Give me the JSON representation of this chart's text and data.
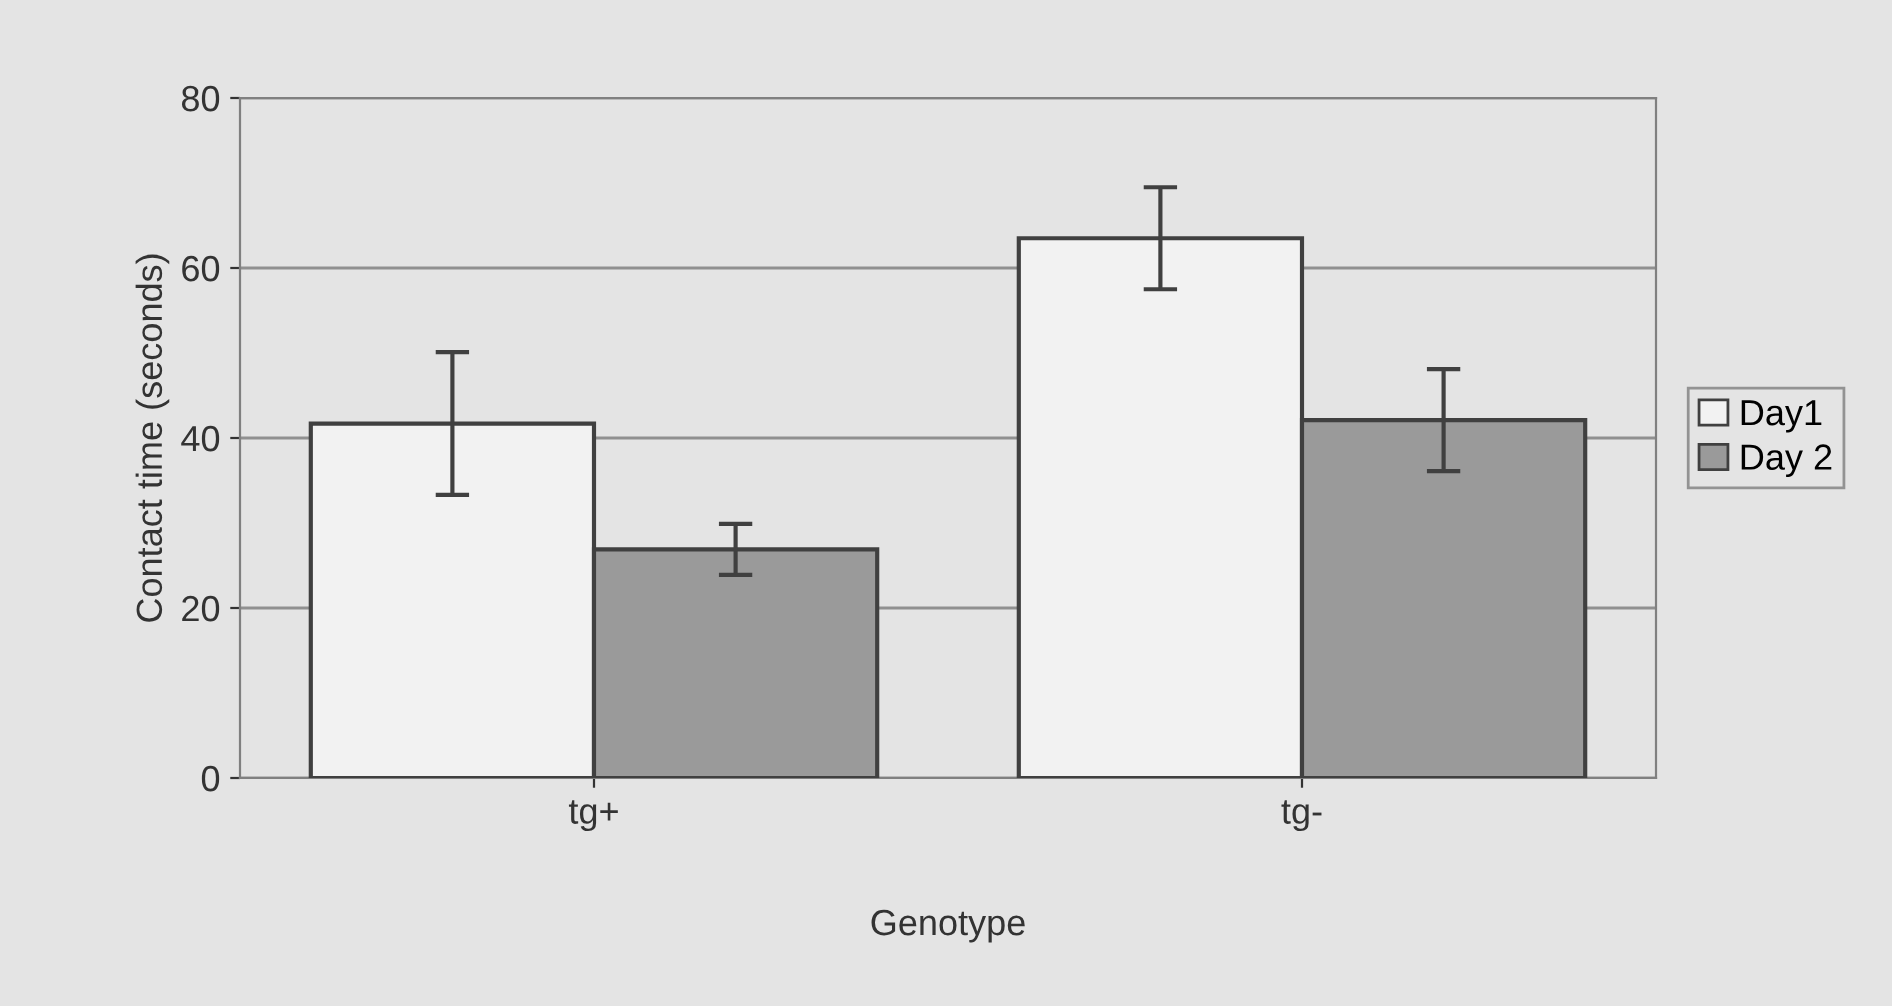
{
  "chart_data": {
    "type": "bar",
    "xlabel": "Genotype",
    "ylabel": "Contact time (seconds)",
    "categories": [
      "tg+",
      "tg-"
    ],
    "series": [
      {
        "name": "Day1",
        "color": "#f2f2f2",
        "values": [
          41.7,
          63.5
        ],
        "errors": [
          8.4,
          6
        ]
      },
      {
        "name": "Day 2",
        "color": "#9a9a9a",
        "values": [
          26.9,
          42.1
        ],
        "errors": [
          3,
          6
        ]
      }
    ],
    "ylim": [
      0,
      80
    ],
    "yticks": [
      0,
      20,
      40,
      60,
      80
    ],
    "grid": "y",
    "legend": "right"
  }
}
